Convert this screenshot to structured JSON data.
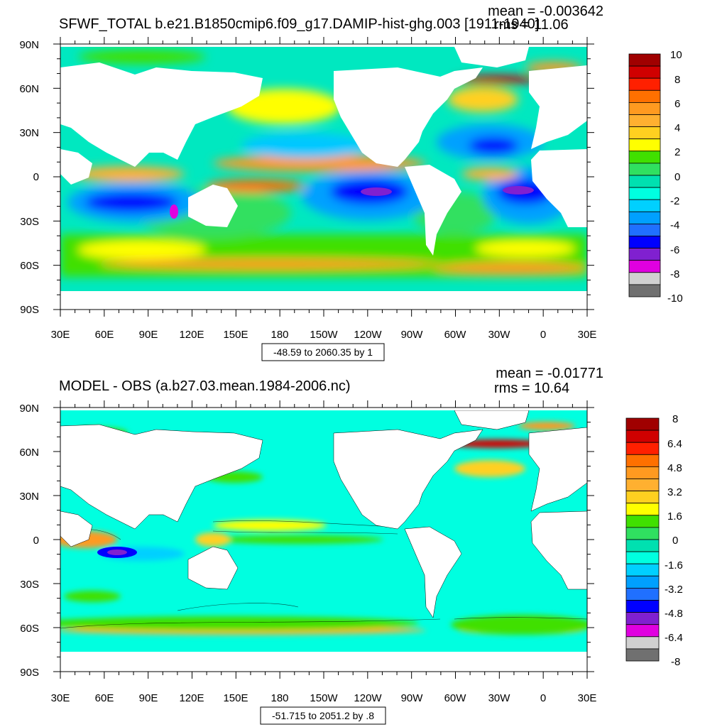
{
  "chart_data": [
    {
      "type": "heatmap",
      "title": "SFWF_TOTAL b.e21.B1850cmip6.f09_g17.DAMIP-hist-ghg.003 [1911-1940]",
      "mean_label": "mean = -0.003642",
      "rms_label": "rms = 11.06",
      "range_label": "-48.59 to 2060.35 by 1",
      "y_ticks": [
        "90N",
        "60N",
        "30N",
        "0",
        "30S",
        "60S",
        "90S"
      ],
      "x_ticks": [
        "30E",
        "60E",
        "90E",
        "120E",
        "150E",
        "180",
        "150W",
        "120W",
        "90W",
        "60W",
        "30W",
        "0",
        "30E"
      ],
      "colorbar": {
        "labels": [
          "10",
          "8",
          "6",
          "4",
          "2",
          "0",
          "-2",
          "-4",
          "-6",
          "-8",
          "-10"
        ],
        "colors": [
          "#a00000",
          "#d00000",
          "#ff2000",
          "#ff7000",
          "#ff9a20",
          "#ffb030",
          "#ffd020",
          "#ffff00",
          "#40e000",
          "#30e060",
          "#00e0b0",
          "#00ffe0",
          "#00d0ff",
          "#00a0ff",
          "#2070ff",
          "#0000ff",
          "#8020d0",
          "#e000e0",
          "#d0d0d0",
          "#707070"
        ]
      }
    },
    {
      "type": "heatmap",
      "title": "MODEL - OBS (a.b27.03.mean.1984-2006.nc)",
      "mean_label": "mean = -0.01771",
      "rms_label": "rms = 10.64",
      "range_label": "-51.715 to 2051.2 by .8",
      "y_ticks": [
        "90N",
        "60N",
        "30N",
        "0",
        "30S",
        "60S",
        "90S"
      ],
      "x_ticks": [
        "30E",
        "60E",
        "90E",
        "120E",
        "150E",
        "180",
        "150W",
        "120W",
        "90W",
        "60W",
        "30W",
        "0",
        "30E"
      ],
      "colorbar": {
        "labels": [
          "8",
          "6.4",
          "4.8",
          "3.2",
          "1.6",
          "0",
          "-1.6",
          "-3.2",
          "-4.8",
          "-6.4",
          "-8"
        ],
        "colors": [
          "#a00000",
          "#d00000",
          "#ff2000",
          "#ff7000",
          "#ff9a20",
          "#ffb030",
          "#ffd020",
          "#ffff00",
          "#40e000",
          "#30e060",
          "#00e0b0",
          "#00ffe0",
          "#00d0ff",
          "#00a0ff",
          "#2070ff",
          "#0000ff",
          "#8020d0",
          "#e000e0",
          "#d0d0d0",
          "#707070"
        ]
      }
    }
  ]
}
